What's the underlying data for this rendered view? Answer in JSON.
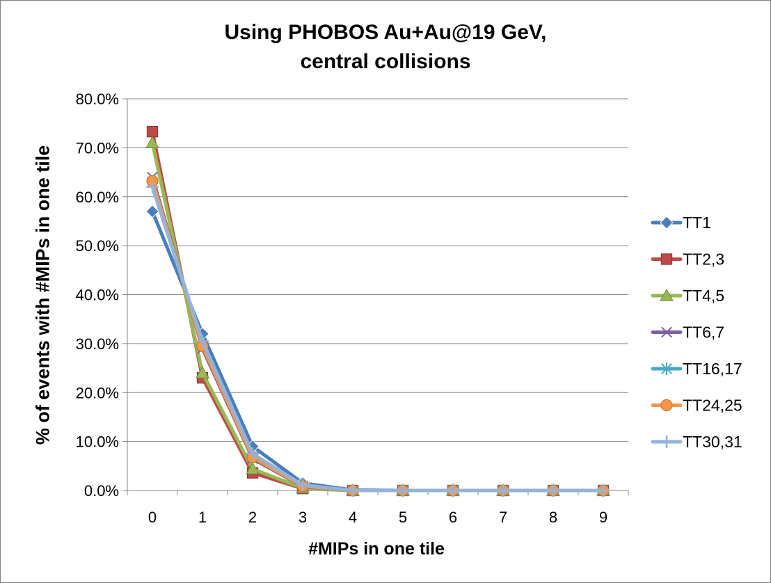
{
  "chart_data": {
    "type": "line",
    "title_line1": "Using PHOBOS Au+Au@19 GeV,",
    "title_line2": "central collisions",
    "xlabel": "#MIPs in one tile",
    "ylabel": "% of events with #MIPs in one tile",
    "x": [
      0,
      1,
      2,
      3,
      4,
      5,
      6,
      7,
      8,
      9
    ],
    "ylim": [
      0,
      0.8
    ],
    "ytick_values": [
      0,
      0.1,
      0.2,
      0.3,
      0.4,
      0.5,
      0.6,
      0.7,
      0.8
    ],
    "ytick_labels": [
      "0.0%",
      "10.0%",
      "20.0%",
      "30.0%",
      "40.0%",
      "50.0%",
      "60.0%",
      "70.0%",
      "80.0%"
    ],
    "grid": true,
    "legend_position": "right",
    "series": [
      {
        "name": "TT1",
        "color": "#4a7ebb",
        "marker": "diamond",
        "values": [
          0.57,
          0.32,
          0.09,
          0.015,
          0.001,
          0.0,
          0.0,
          0.0,
          0.0,
          0.0
        ]
      },
      {
        "name": "TT2,3",
        "color": "#be4b48",
        "marker": "square",
        "values": [
          0.733,
          0.23,
          0.036,
          0.004,
          0.0,
          0.0,
          0.0,
          0.0,
          0.0,
          0.0
        ]
      },
      {
        "name": "TT4,5",
        "color": "#98b954",
        "marker": "triangle",
        "values": [
          0.71,
          0.24,
          0.044,
          0.005,
          0.0,
          0.0,
          0.0,
          0.0,
          0.0,
          0.0
        ]
      },
      {
        "name": "TT6,7",
        "color": "#7d60a0",
        "marker": "x",
        "values": [
          0.64,
          0.29,
          0.065,
          0.008,
          0.0,
          0.0,
          0.0,
          0.0,
          0.0,
          0.0
        ]
      },
      {
        "name": "TT16,17",
        "color": "#46aac5",
        "marker": "star",
        "values": [
          0.63,
          0.295,
          0.068,
          0.009,
          0.0,
          0.0,
          0.0,
          0.0,
          0.0,
          0.0
        ]
      },
      {
        "name": "TT24,25",
        "color": "#f79646",
        "marker": "circle",
        "values": [
          0.632,
          0.295,
          0.068,
          0.009,
          0.0,
          0.0,
          0.0,
          0.0,
          0.0,
          0.0
        ]
      },
      {
        "name": "TT30,31",
        "color": "#95b3d7",
        "marker": "plus",
        "values": [
          0.62,
          0.305,
          0.075,
          0.011,
          0.0,
          0.0,
          0.0,
          0.0,
          0.0,
          0.0
        ]
      }
    ]
  }
}
